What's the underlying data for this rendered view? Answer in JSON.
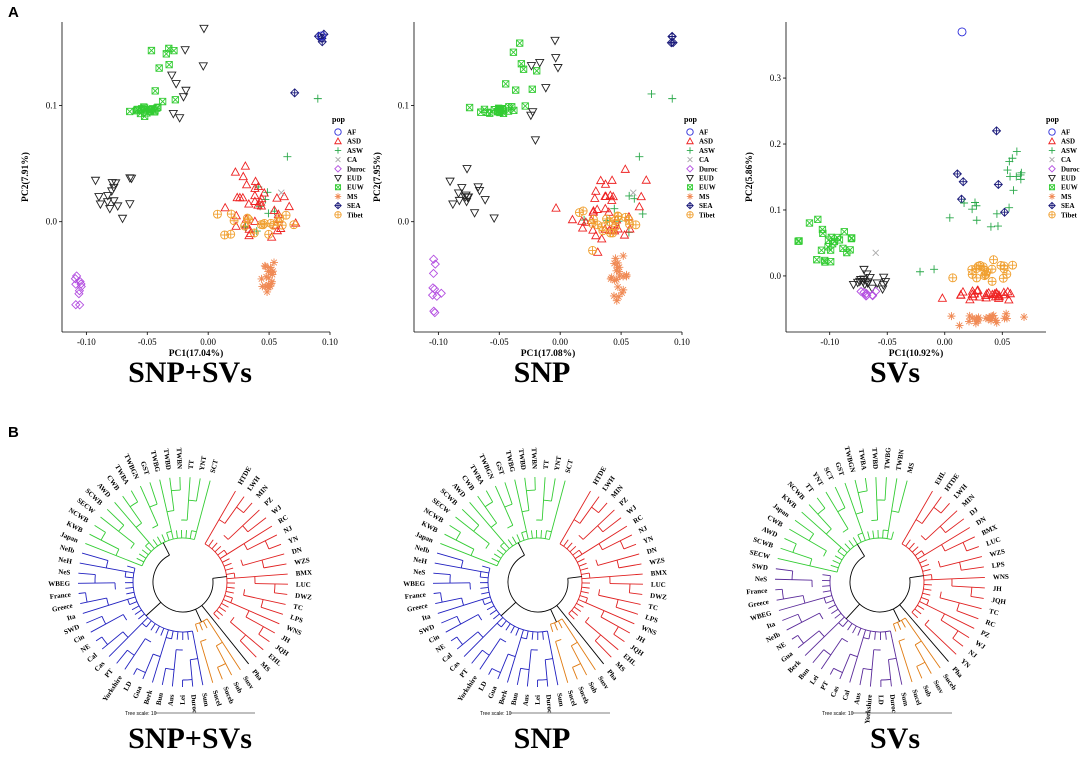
{
  "figure": {
    "panel_a_label": "A",
    "panel_b_label": "B",
    "captions_a": [
      "SNP+SVs",
      "SNP",
      "SVs"
    ],
    "captions_b": [
      "SNP+SVs",
      "SNP",
      "SVs"
    ],
    "tree_scale_label": "Tree scale: 10"
  },
  "chart_data": [
    {
      "type": "scatter",
      "title": "SNP+SVs",
      "xlabel": "PC1(17.04%)",
      "ylabel": "PC2(7.91%)",
      "xlim": [
        -0.12,
        0.1
      ],
      "ylim": [
        -0.095,
        0.172
      ],
      "xticks": [
        -0.1,
        -0.05,
        0.0,
        0.05,
        0.1
      ],
      "xtick_labels": [
        "-0.10",
        "-0.05",
        "0.00",
        "0.05",
        "0.10"
      ],
      "yticks": [
        0.0,
        0.1
      ],
      "ytick_labels": [
        "0.0",
        "0.1"
      ],
      "legend_title": "pop",
      "legend_position": "right",
      "clusters": [
        {
          "pop": "EUW",
          "cx": -0.05,
          "cy": 0.096,
          "sx": 0.007,
          "sy": 0.002,
          "n": 20
        },
        {
          "pop": "EUW",
          "cx": -0.035,
          "cy": 0.137,
          "sx": 0.007,
          "sy": 0.018,
          "n": 10
        },
        {
          "pop": "EUD",
          "cx": -0.01,
          "cy": 0.128,
          "sx": 0.01,
          "sy": 0.025,
          "n": 7
        },
        {
          "pop": "EUD",
          "cx": -0.025,
          "cy": 0.09,
          "sx": 0.003,
          "sy": 0.002,
          "n": 2
        },
        {
          "pop": "EUD",
          "cx": -0.076,
          "cy": 0.023,
          "sx": 0.008,
          "sy": 0.01,
          "n": 16
        },
        {
          "pop": "SEA",
          "cx": 0.092,
          "cy": 0.157,
          "sx": 0.002,
          "sy": 0.003,
          "n": 4
        },
        {
          "pop": "SEA",
          "cx": 0.071,
          "cy": 0.111,
          "sx": 0.001,
          "sy": 0.001,
          "n": 1
        },
        {
          "pop": "ASW",
          "cx": 0.09,
          "cy": 0.106,
          "sx": 0.001,
          "sy": 0.001,
          "n": 1
        },
        {
          "pop": "ASW",
          "cx": 0.065,
          "cy": 0.056,
          "sx": 0.001,
          "sy": 0.001,
          "n": 1
        },
        {
          "pop": "ASW",
          "cx": 0.04,
          "cy": 0.01,
          "sx": 0.01,
          "sy": 0.012,
          "n": 8
        },
        {
          "pop": "ASD",
          "cx": 0.04,
          "cy": 0.008,
          "sx": 0.015,
          "sy": 0.016,
          "n": 38
        },
        {
          "pop": "Tibet",
          "cx": 0.042,
          "cy": -0.001,
          "sx": 0.015,
          "sy": 0.007,
          "n": 20
        },
        {
          "pop": "MS",
          "cx": 0.048,
          "cy": -0.047,
          "sx": 0.004,
          "sy": 0.008,
          "n": 22
        },
        {
          "pop": "Duroc",
          "cx": -0.105,
          "cy": -0.058,
          "sx": 0.004,
          "sy": 0.011,
          "n": 10
        },
        {
          "pop": "CA",
          "cx": 0.06,
          "cy": 0.025,
          "sx": 0.001,
          "sy": 0.001,
          "n": 1
        },
        {
          "pop": "AF",
          "cx": 0.093,
          "cy": 0.16,
          "sx": 0.001,
          "sy": 0.001,
          "n": 1
        }
      ]
    },
    {
      "type": "scatter",
      "title": "SNP",
      "xlabel": "PC1(17.08%)",
      "ylabel": "PC2(7.95%)",
      "xlim": [
        -0.12,
        0.1
      ],
      "ylim": [
        -0.095,
        0.172
      ],
      "xticks": [
        -0.1,
        -0.05,
        0.0,
        0.05,
        0.1
      ],
      "xtick_labels": [
        "-0.10",
        "-0.05",
        "0.00",
        "0.05",
        "0.10"
      ],
      "yticks": [
        0.0,
        0.1
      ],
      "ytick_labels": [
        "0.0",
        "0.1"
      ],
      "legend_title": "pop",
      "legend_position": "right",
      "clusters": [
        {
          "pop": "EUW",
          "cx": -0.05,
          "cy": 0.096,
          "sx": 0.007,
          "sy": 0.002,
          "n": 20
        },
        {
          "pop": "EUW",
          "cx": -0.035,
          "cy": 0.137,
          "sx": 0.007,
          "sy": 0.018,
          "n": 10
        },
        {
          "pop": "EUD",
          "cx": -0.01,
          "cy": 0.128,
          "sx": 0.01,
          "sy": 0.025,
          "n": 7
        },
        {
          "pop": "EUD",
          "cx": -0.025,
          "cy": 0.09,
          "sx": 0.003,
          "sy": 0.002,
          "n": 2
        },
        {
          "pop": "EUD",
          "cx": -0.076,
          "cy": 0.023,
          "sx": 0.008,
          "sy": 0.01,
          "n": 16
        },
        {
          "pop": "SEA",
          "cx": 0.092,
          "cy": 0.157,
          "sx": 0.002,
          "sy": 0.003,
          "n": 4
        },
        {
          "pop": "ASW",
          "cx": 0.075,
          "cy": 0.11,
          "sx": 0.001,
          "sy": 0.001,
          "n": 1
        },
        {
          "pop": "ASW",
          "cx": 0.092,
          "cy": 0.106,
          "sx": 0.001,
          "sy": 0.001,
          "n": 1
        },
        {
          "pop": "ASW",
          "cx": 0.065,
          "cy": 0.056,
          "sx": 0.001,
          "sy": 0.001,
          "n": 1
        },
        {
          "pop": "ASW",
          "cx": 0.04,
          "cy": 0.01,
          "sx": 0.01,
          "sy": 0.012,
          "n": 8
        },
        {
          "pop": "ASD",
          "cx": 0.04,
          "cy": 0.008,
          "sx": 0.015,
          "sy": 0.016,
          "n": 38
        },
        {
          "pop": "Tibet",
          "cx": 0.042,
          "cy": -0.001,
          "sx": 0.015,
          "sy": 0.007,
          "n": 20
        },
        {
          "pop": "MS",
          "cx": 0.048,
          "cy": -0.047,
          "sx": 0.004,
          "sy": 0.008,
          "n": 22
        },
        {
          "pop": "Duroc",
          "cx": -0.105,
          "cy": -0.058,
          "sx": 0.004,
          "sy": 0.011,
          "n": 10
        },
        {
          "pop": "CA",
          "cx": 0.06,
          "cy": 0.025,
          "sx": 0.001,
          "sy": 0.001,
          "n": 1
        }
      ]
    },
    {
      "type": "scatter",
      "title": "SVs",
      "xlabel": "PC1(10.92%)",
      "ylabel": "PC2(5.86%)",
      "xlim": [
        -0.138,
        0.088
      ],
      "ylim": [
        -0.085,
        0.385
      ],
      "xticks": [
        -0.1,
        -0.05,
        0.0,
        0.05
      ],
      "xtick_labels": [
        "-0.10",
        "-0.05",
        "0.00",
        "0.05"
      ],
      "yticks": [
        0.0,
        0.1,
        0.2,
        0.3
      ],
      "ytick_labels": [
        "0.0",
        "0.1",
        "0.2",
        "0.3"
      ],
      "legend_title": "pop",
      "legend_position": "right",
      "clusters": [
        {
          "pop": "AF",
          "cx": 0.015,
          "cy": 0.37,
          "sx": 0.001,
          "sy": 0.001,
          "n": 1
        },
        {
          "pop": "SEA",
          "cx": 0.045,
          "cy": 0.22,
          "sx": 0.001,
          "sy": 0.001,
          "n": 1
        },
        {
          "pop": "SEA",
          "cx": 0.025,
          "cy": 0.135,
          "sx": 0.012,
          "sy": 0.015,
          "n": 5
        },
        {
          "pop": "ASW",
          "cx": 0.06,
          "cy": 0.13,
          "sx": 0.01,
          "sy": 0.03,
          "n": 14
        },
        {
          "pop": "ASW",
          "cx": 0.015,
          "cy": 0.09,
          "sx": 0.012,
          "sy": 0.02,
          "n": 6
        },
        {
          "pop": "ASW",
          "cx": -0.012,
          "cy": 0.01,
          "sx": 0.006,
          "sy": 0.006,
          "n": 2
        },
        {
          "pop": "EUW",
          "cx": -0.098,
          "cy": 0.055,
          "sx": 0.014,
          "sy": 0.03,
          "n": 25
        },
        {
          "pop": "CA",
          "cx": -0.06,
          "cy": 0.035,
          "sx": 0.001,
          "sy": 0.001,
          "n": 1
        },
        {
          "pop": "EUD",
          "cx": -0.065,
          "cy": -0.01,
          "sx": 0.012,
          "sy": 0.006,
          "n": 18
        },
        {
          "pop": "Duroc",
          "cx": -0.068,
          "cy": -0.028,
          "sx": 0.005,
          "sy": 0.003,
          "n": 8
        },
        {
          "pop": "ASD",
          "cx": 0.035,
          "cy": -0.03,
          "sx": 0.014,
          "sy": 0.004,
          "n": 30
        },
        {
          "pop": "Tibet",
          "cx": 0.038,
          "cy": 0.005,
          "sx": 0.014,
          "sy": 0.008,
          "n": 22
        },
        {
          "pop": "MS",
          "cx": 0.04,
          "cy": -0.065,
          "sx": 0.012,
          "sy": 0.004,
          "n": 26
        }
      ]
    }
  ],
  "legend": [
    {
      "pop": "AF",
      "color": "#2b2bd9",
      "marker": "circle"
    },
    {
      "pop": "ASD",
      "color": "#ee2222",
      "marker": "triangle"
    },
    {
      "pop": "ASW",
      "color": "#2aa84a",
      "marker": "plus"
    },
    {
      "pop": "CA",
      "color": "#aaaaaa",
      "marker": "x"
    },
    {
      "pop": "Duroc",
      "color": "#b34ee0",
      "marker": "diamond"
    },
    {
      "pop": "EUD",
      "color": "#222222",
      "marker": "triangle-down"
    },
    {
      "pop": "EUW",
      "color": "#33cc33",
      "marker": "boxx"
    },
    {
      "pop": "MS",
      "color": "#f08a55",
      "marker": "star"
    },
    {
      "pop": "SEA",
      "color": "#1a1a7a",
      "marker": "diamond-plus"
    },
    {
      "pop": "Tibet",
      "color": "#f0a030",
      "marker": "circle-plus"
    }
  ],
  "trees": [
    {
      "title": "SNP+SVs",
      "clades": [
        {
          "color": "#e02020",
          "leaves": [
            "HTDE",
            "LWH",
            "MIN",
            "PZ",
            "WJ",
            "RC",
            "NJ",
            "YN",
            "DN",
            "WZS",
            "BMX",
            "LUC",
            "DWZ",
            "TC",
            "LPS",
            "WNS",
            "JH",
            "JQH",
            "EHL",
            "MS"
          ]
        },
        {
          "color": "#000000",
          "leaves": [
            "Pha"
          ]
        },
        {
          "color": "#e07a10",
          "leaves": [
            "Susv",
            "Sub",
            "Suceb",
            "Sucel"
          ]
        },
        {
          "color": "#2020c0",
          "leaves": [
            "Sum",
            "Duroc",
            "Lei",
            "Aus",
            "Bun",
            "Berk",
            "Gua",
            "LD",
            "Yorkshire",
            "PT",
            "Cas",
            "Cal",
            "NE",
            "Cin",
            "SWD",
            "Ita",
            "Greece",
            "France",
            "WBEG",
            "NeS",
            "NeH",
            "NeIb"
          ]
        },
        {
          "color": "#33cc33",
          "leaves": [
            "Japan",
            "KWB",
            "NCWB",
            "SECW",
            "SCWB",
            "AWD",
            "CWB",
            "TWBA",
            "TWBGN",
            "GST",
            "TWBG",
            "TWBD",
            "TWBN",
            "TT",
            "YNT",
            "SCT"
          ]
        }
      ]
    },
    {
      "title": "SNP",
      "clades": [
        {
          "color": "#e02020",
          "leaves": [
            "HTDE",
            "LWH",
            "MIN",
            "PZ",
            "WJ",
            "RC",
            "NJ",
            "YN",
            "DN",
            "WZS",
            "BMX",
            "LUC",
            "DWZ",
            "TC",
            "LPS",
            "WNS",
            "JH",
            "JQH",
            "EHL",
            "MS"
          ]
        },
        {
          "color": "#000000",
          "leaves": [
            "Pha"
          ]
        },
        {
          "color": "#e07a10",
          "leaves": [
            "Susv",
            "Sub",
            "Suceb",
            "Sucel"
          ]
        },
        {
          "color": "#2020c0",
          "leaves": [
            "Sum",
            "Duroc",
            "Lei",
            "Aus",
            "Bun",
            "Berk",
            "Gua",
            "LD",
            "Yorkshire",
            "PT",
            "Cas",
            "Cal",
            "NE",
            "Cin",
            "SWD",
            "Ita",
            "Greece",
            "France",
            "WBEG",
            "NeS",
            "NeH",
            "NeIb"
          ]
        },
        {
          "color": "#33cc33",
          "leaves": [
            "Japan",
            "KWB",
            "NCWB",
            "SECW",
            "SCWB",
            "AWD",
            "CWB",
            "TWBA",
            "TWBGN",
            "GST",
            "TWBG",
            "TWBD",
            "TWBN",
            "TT",
            "YNT",
            "SCT"
          ]
        }
      ]
    },
    {
      "title": "SVs",
      "clades": [
        {
          "color": "#e02020",
          "leaves": [
            "EHL",
            "HTDE",
            "LWH",
            "MIN",
            "DJ",
            "DN",
            "BMX",
            "LUC",
            "WZS",
            "LPS",
            "WNS",
            "JH",
            "JQH",
            "TC",
            "RC",
            "PZ",
            "WJ",
            "NJ",
            "YN"
          ]
        },
        {
          "color": "#000000",
          "leaves": [
            "Pha"
          ]
        },
        {
          "color": "#e07a10",
          "leaves": [
            "Suceb",
            "Susv",
            "Sub",
            "Sucel"
          ]
        },
        {
          "color": "#5a2a9a",
          "leaves": [
            "Sum",
            "Duroc",
            "LD",
            "Yorkshire",
            "Aus",
            "Cal",
            "Cas",
            "PT",
            "Lei",
            "Bun",
            "Berk",
            "Gua",
            "NE",
            "NeIb",
            "Ita",
            "WBEG",
            "Greece",
            "France",
            "NeS",
            "SWD"
          ]
        },
        {
          "color": "#33cc33",
          "leaves": [
            "SECW",
            "SCWB",
            "AWD",
            "CWB",
            "Japan",
            "KWB",
            "NCWB",
            "TT",
            "YNT",
            "SCT",
            "GST",
            "TWBGN",
            "TWBA",
            "TWBD",
            "TWBG",
            "TWBN",
            "MS"
          ]
        }
      ]
    }
  ]
}
